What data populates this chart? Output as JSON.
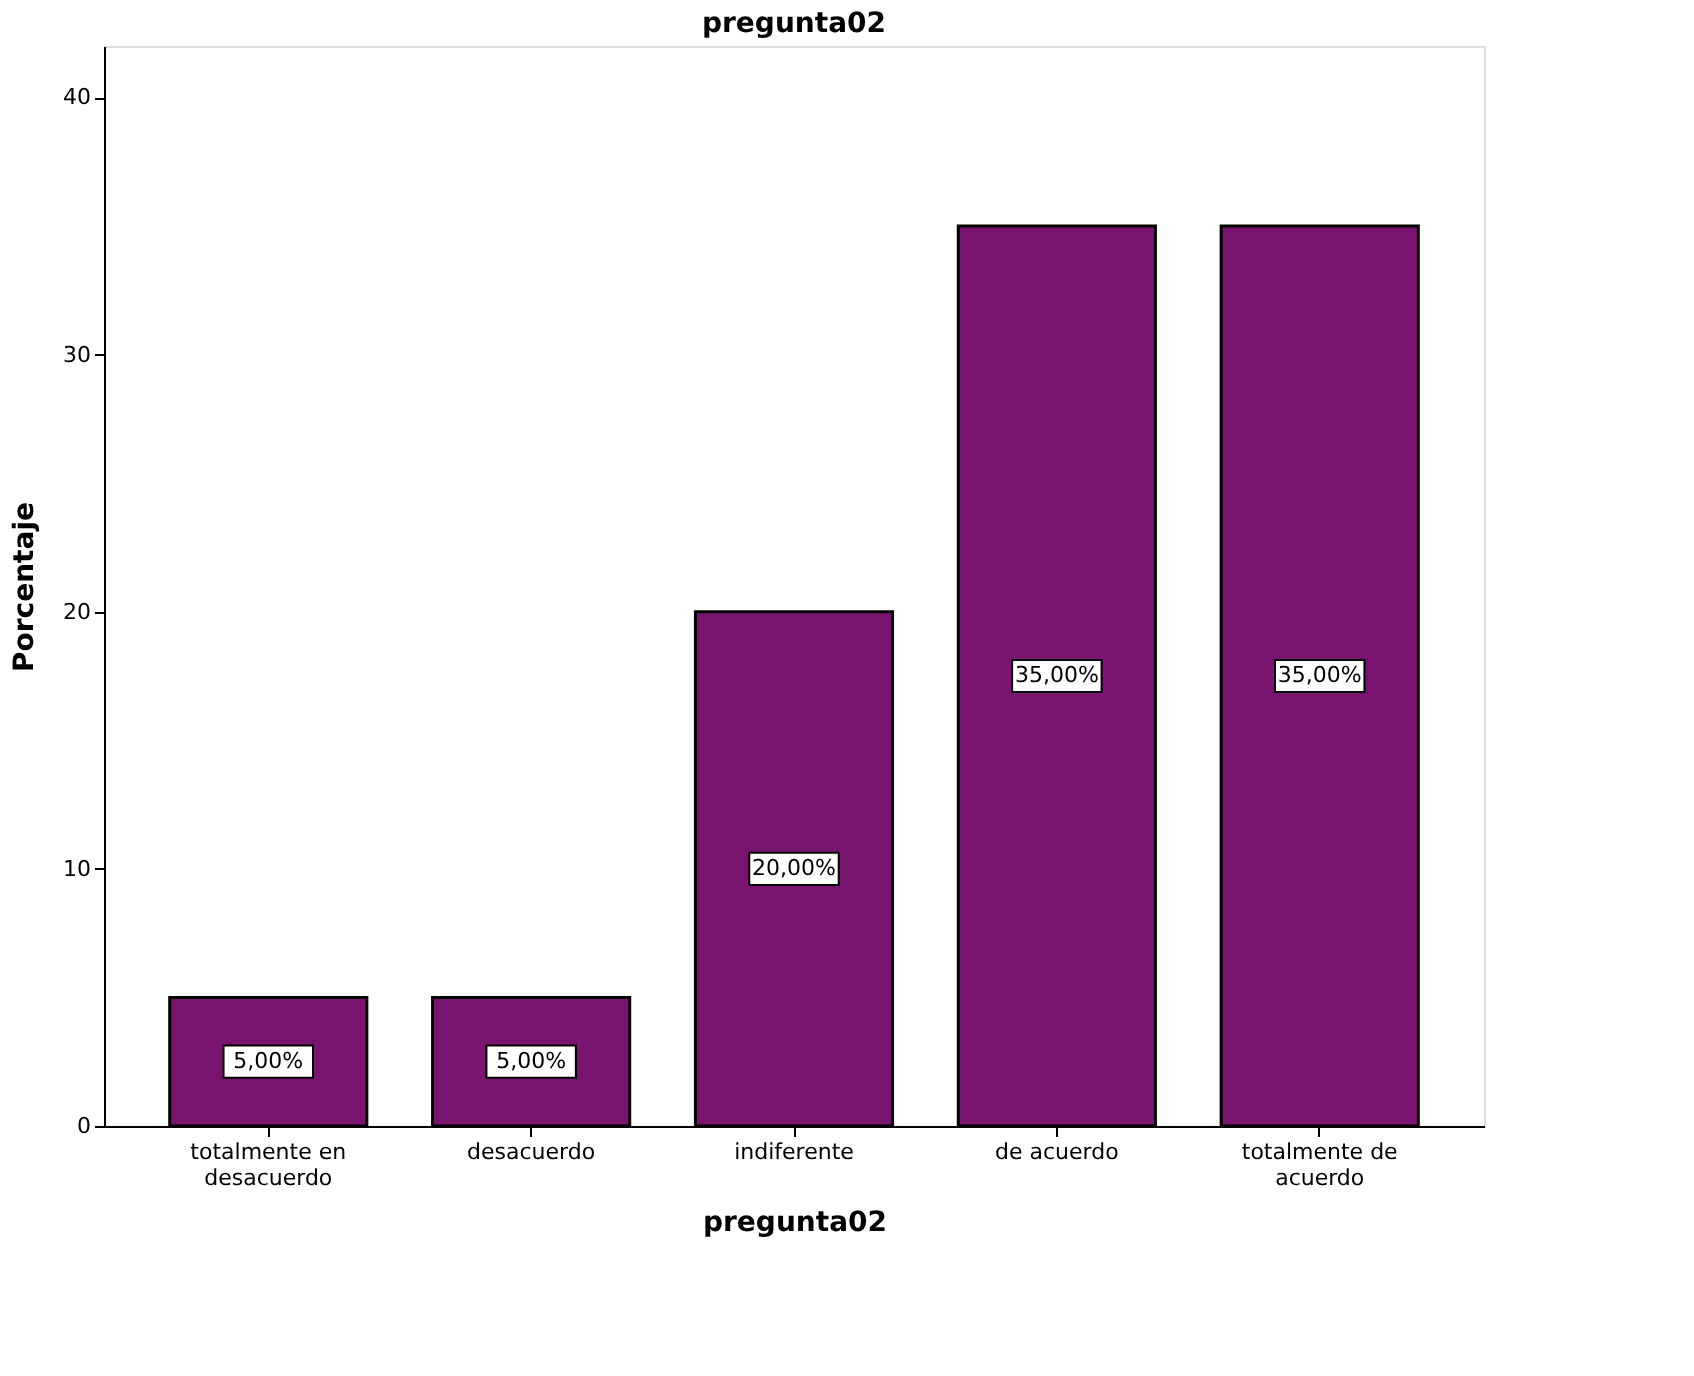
{
  "chart_data": {
    "type": "bar",
    "title": "pregunta02",
    "xlabel": "pregunta02",
    "ylabel": "Porcentaje",
    "categories": [
      "totalmente en desacuerdo",
      "desacuerdo",
      "indiferente",
      "de acuerdo",
      "totalmente de acuerdo"
    ],
    "values": [
      5,
      5,
      20,
      35,
      35
    ],
    "value_labels": [
      "5,00%",
      "5,00%",
      "20,00%",
      "35,00%",
      "35,00%"
    ],
    "color": "#79156f",
    "ylim": [
      0,
      42
    ],
    "yticks": [
      0,
      10,
      20,
      30,
      40
    ],
    "grid": false
  }
}
